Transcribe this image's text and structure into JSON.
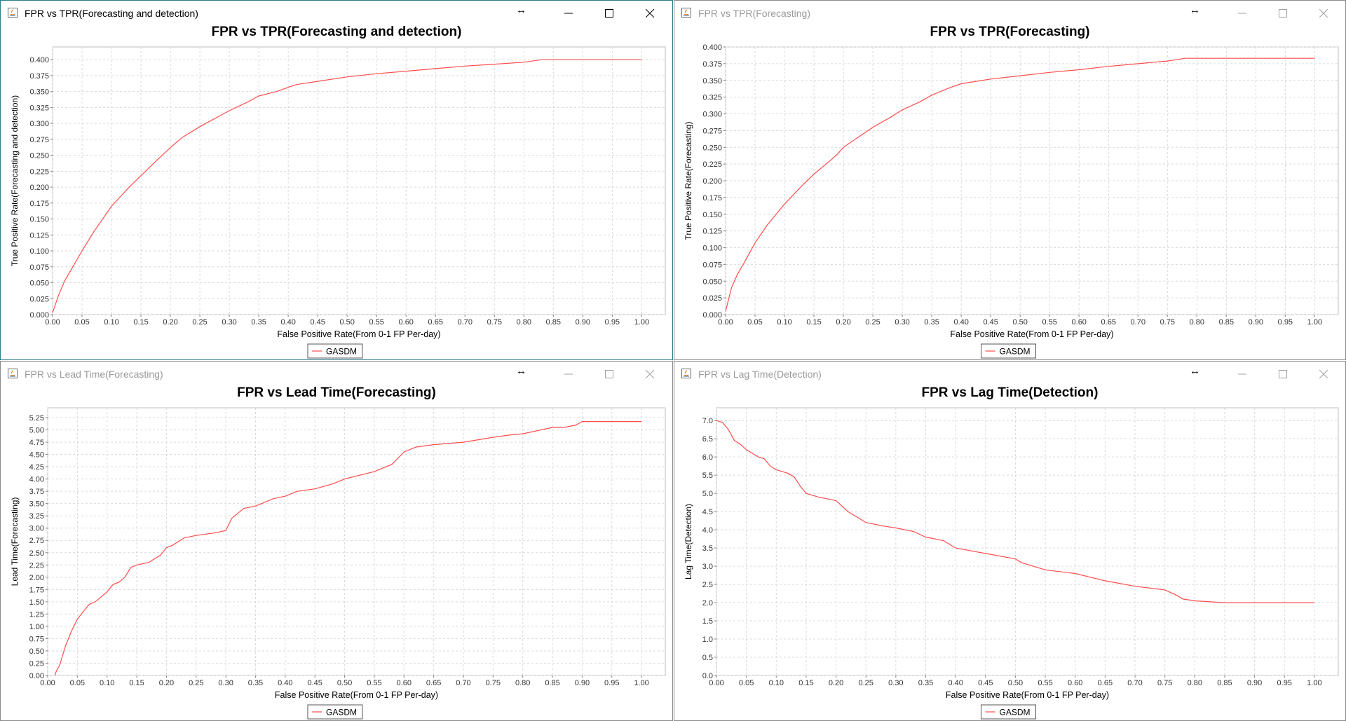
{
  "windows": [
    {
      "title": "FPR vs TPR(Forecasting and detection)",
      "active": true,
      "chart_data": {
        "type": "line",
        "title": "FPR vs TPR(Forecasting and detection)",
        "xlabel": "False Positive Rate(From 0-1 FP Per-day)",
        "ylabel": "True Positive Rate(Forecasting and detection)",
        "xlim": [
          0,
          1.04
        ],
        "ylim": [
          0,
          0.42
        ],
        "xticks": [
          "0.00",
          "0.05",
          "0.10",
          "0.15",
          "0.20",
          "0.25",
          "0.30",
          "0.35",
          "0.40",
          "0.45",
          "0.50",
          "0.55",
          "0.60",
          "0.65",
          "0.70",
          "0.75",
          "0.80",
          "0.85",
          "0.90",
          "0.95",
          "1.00"
        ],
        "yticks": [
          "0.000",
          "0.025",
          "0.050",
          "0.075",
          "0.100",
          "0.125",
          "0.150",
          "0.175",
          "0.200",
          "0.225",
          "0.250",
          "0.275",
          "0.300",
          "0.325",
          "0.350",
          "0.375",
          "0.400"
        ],
        "grid": true,
        "legend": "bottom-center",
        "series": [
          {
            "name": "GASDM",
            "color": "#ff4d4d",
            "x": [
              0.0,
              0.01,
              0.02,
              0.03,
              0.05,
              0.07,
              0.1,
              0.13,
              0.15,
              0.18,
              0.2,
              0.22,
              0.25,
              0.28,
              0.3,
              0.33,
              0.35,
              0.38,
              0.41,
              0.42,
              0.45,
              0.5,
              0.55,
              0.6,
              0.65,
              0.7,
              0.75,
              0.8,
              0.83,
              0.85,
              0.9,
              0.95,
              1.0
            ],
            "y": [
              0.003,
              0.03,
              0.052,
              0.068,
              0.1,
              0.13,
              0.17,
              0.2,
              0.218,
              0.245,
              0.262,
              0.278,
              0.295,
              0.31,
              0.32,
              0.333,
              0.343,
              0.35,
              0.36,
              0.362,
              0.366,
              0.373,
              0.378,
              0.382,
              0.386,
              0.39,
              0.393,
              0.396,
              0.4,
              0.4,
              0.4,
              0.4,
              0.4
            ]
          }
        ]
      }
    },
    {
      "title": "FPR vs TPR(Forecasting)",
      "active": false,
      "chart_data": {
        "type": "line",
        "title": "FPR vs TPR(Forecasting)",
        "xlabel": "False Positive Rate(From 0-1 FP Per-day)",
        "ylabel": "True Positive Rate(Forecasting)",
        "xlim": [
          0,
          1.04
        ],
        "ylim": [
          0,
          0.4
        ],
        "xticks": [
          "0.00",
          "0.05",
          "0.10",
          "0.15",
          "0.20",
          "0.25",
          "0.30",
          "0.35",
          "0.40",
          "0.45",
          "0.50",
          "0.55",
          "0.60",
          "0.65",
          "0.70",
          "0.75",
          "0.80",
          "0.85",
          "0.90",
          "0.95",
          "1.00"
        ],
        "yticks": [
          "0.000",
          "0.025",
          "0.050",
          "0.075",
          "0.100",
          "0.125",
          "0.150",
          "0.175",
          "0.200",
          "0.225",
          "0.250",
          "0.275",
          "0.300",
          "0.325",
          "0.350",
          "0.375",
          "0.400"
        ],
        "grid": true,
        "legend": "bottom-center",
        "series": [
          {
            "name": "GASDM",
            "color": "#ff4d4d",
            "x": [
              0.0,
              0.01,
              0.02,
              0.03,
              0.05,
              0.07,
              0.1,
              0.13,
              0.15,
              0.18,
              0.19,
              0.2,
              0.22,
              0.25,
              0.28,
              0.3,
              0.33,
              0.35,
              0.38,
              0.4,
              0.45,
              0.5,
              0.55,
              0.6,
              0.65,
              0.7,
              0.75,
              0.78,
              0.8,
              0.85,
              0.9,
              0.95,
              1.0
            ],
            "y": [
              0.005,
              0.04,
              0.06,
              0.075,
              0.107,
              0.133,
              0.165,
              0.193,
              0.21,
              0.232,
              0.24,
              0.25,
              0.262,
              0.28,
              0.295,
              0.306,
              0.318,
              0.328,
              0.339,
              0.345,
              0.352,
              0.357,
              0.362,
              0.366,
              0.371,
              0.375,
              0.379,
              0.383,
              0.383,
              0.383,
              0.383,
              0.383,
              0.383
            ]
          }
        ]
      }
    },
    {
      "title": "FPR vs Lead Time(Forecasting)",
      "active": false,
      "chart_data": {
        "type": "line",
        "title": "FPR vs Lead Time(Forecasting)",
        "xlabel": "False Positive Rate(From 0-1 FP Per-day)",
        "ylabel": "Lead Time(Forecasting)",
        "xlim": [
          0,
          1.04
        ],
        "ylim": [
          0,
          5.45
        ],
        "xticks": [
          "0.00",
          "0.05",
          "0.10",
          "0.15",
          "0.20",
          "0.25",
          "0.30",
          "0.35",
          "0.40",
          "0.45",
          "0.50",
          "0.55",
          "0.60",
          "0.65",
          "0.70",
          "0.75",
          "0.80",
          "0.85",
          "0.90",
          "0.95",
          "1.00"
        ],
        "yticks": [
          "0.00",
          "0.25",
          "0.50",
          "0.75",
          "1.00",
          "1.25",
          "1.50",
          "1.75",
          "2.00",
          "2.25",
          "2.50",
          "2.75",
          "3.00",
          "3.25",
          "3.50",
          "3.75",
          "4.00",
          "4.25",
          "4.50",
          "4.75",
          "5.00",
          "5.25"
        ],
        "grid": true,
        "legend": "bottom-center",
        "series": [
          {
            "name": "GASDM",
            "color": "#ff4d4d",
            "x": [
              0.012,
              0.015,
              0.02,
              0.03,
              0.04,
              0.05,
              0.06,
              0.07,
              0.08,
              0.09,
              0.1,
              0.11,
              0.12,
              0.13,
              0.14,
              0.15,
              0.17,
              0.19,
              0.2,
              0.21,
              0.23,
              0.25,
              0.28,
              0.3,
              0.31,
              0.33,
              0.35,
              0.38,
              0.4,
              0.42,
              0.45,
              0.48,
              0.5,
              0.55,
              0.58,
              0.6,
              0.62,
              0.65,
              0.7,
              0.75,
              0.78,
              0.8,
              0.85,
              0.87,
              0.89,
              0.9,
              0.95,
              1.0
            ],
            "y": [
              0.0,
              0.1,
              0.2,
              0.6,
              0.9,
              1.15,
              1.3,
              1.45,
              1.5,
              1.6,
              1.7,
              1.85,
              1.9,
              2.0,
              2.2,
              2.25,
              2.3,
              2.45,
              2.6,
              2.65,
              2.8,
              2.85,
              2.9,
              2.95,
              3.2,
              3.4,
              3.45,
              3.6,
              3.65,
              3.75,
              3.8,
              3.9,
              4.0,
              4.15,
              4.3,
              4.55,
              4.65,
              4.7,
              4.75,
              4.85,
              4.9,
              4.92,
              5.05,
              5.05,
              5.1,
              5.17,
              5.17,
              5.17
            ]
          }
        ]
      }
    },
    {
      "title": "FPR vs Lag Time(Detection)",
      "active": false,
      "chart_data": {
        "type": "line",
        "title": "FPR vs Lag Time(Detection)",
        "xlabel": "False Positive Rate(From 0-1 FP Per-day)",
        "ylabel": "Lag Time(Detection)",
        "xlim": [
          0,
          1.04
        ],
        "ylim": [
          0,
          7.35
        ],
        "xticks": [
          "0.00",
          "0.05",
          "0.10",
          "0.15",
          "0.20",
          "0.25",
          "0.30",
          "0.35",
          "0.40",
          "0.45",
          "0.50",
          "0.55",
          "0.60",
          "0.65",
          "0.70",
          "0.75",
          "0.80",
          "0.85",
          "0.90",
          "0.95",
          "1.00"
        ],
        "yticks": [
          "0.0",
          "0.5",
          "1.0",
          "1.5",
          "2.0",
          "2.5",
          "3.0",
          "3.5",
          "4.0",
          "4.5",
          "5.0",
          "5.5",
          "6.0",
          "6.5",
          "7.0"
        ],
        "grid": true,
        "legend": "bottom-center",
        "series": [
          {
            "name": "GASDM",
            "color": "#ff4d4d",
            "x": [
              0.0,
              0.01,
              0.02,
              0.03,
              0.04,
              0.05,
              0.07,
              0.08,
              0.09,
              0.1,
              0.12,
              0.13,
              0.14,
              0.15,
              0.16,
              0.17,
              0.2,
              0.22,
              0.25,
              0.28,
              0.3,
              0.33,
              0.35,
              0.38,
              0.4,
              0.45,
              0.5,
              0.51,
              0.55,
              0.6,
              0.65,
              0.7,
              0.75,
              0.77,
              0.78,
              0.8,
              0.85,
              0.9,
              0.95,
              1.0
            ],
            "y": [
              7.0,
              6.95,
              6.75,
              6.45,
              6.35,
              6.2,
              6.0,
              5.95,
              5.75,
              5.65,
              5.55,
              5.45,
              5.2,
              5.0,
              4.95,
              4.9,
              4.8,
              4.5,
              4.2,
              4.1,
              4.05,
              3.95,
              3.8,
              3.7,
              3.5,
              3.35,
              3.2,
              3.1,
              2.9,
              2.8,
              2.6,
              2.45,
              2.35,
              2.2,
              2.1,
              2.05,
              2.0,
              2.0,
              2.0,
              2.0
            ]
          }
        ]
      }
    }
  ]
}
